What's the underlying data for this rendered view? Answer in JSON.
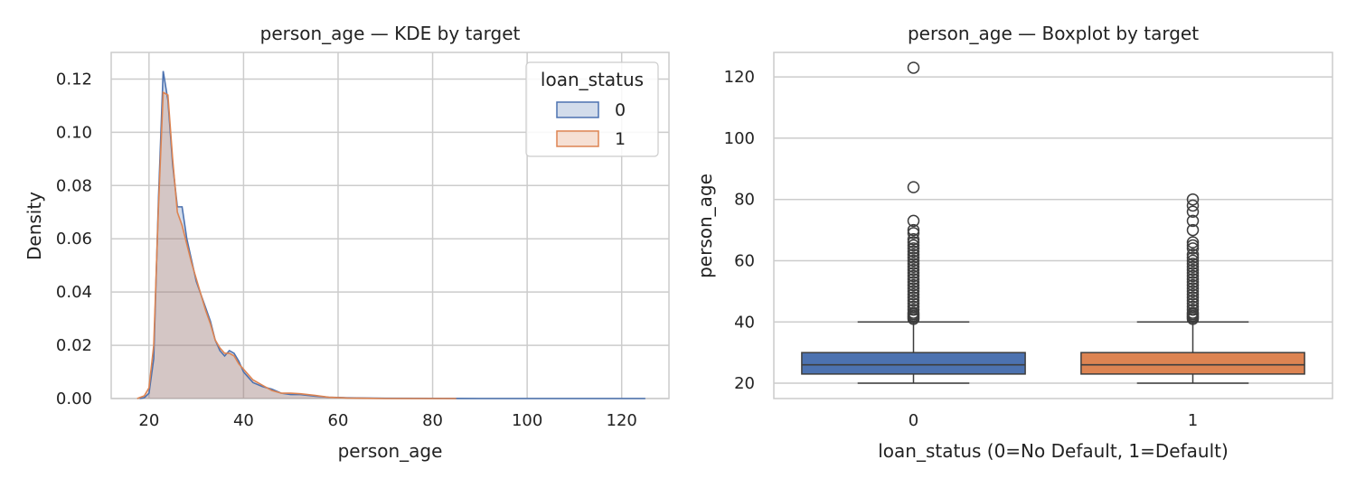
{
  "chart_data": [
    {
      "type": "area",
      "title": "person_age — KDE by target",
      "xlabel": "person_age",
      "ylabel": "Density",
      "xlim": [
        12,
        130
      ],
      "ylim": [
        0,
        0.13
      ],
      "xticks": [
        "20",
        "40",
        "60",
        "80",
        "100",
        "120"
      ],
      "yticks": [
        "0.00",
        "0.02",
        "0.04",
        "0.06",
        "0.08",
        "0.10",
        "0.12"
      ],
      "grid": true,
      "legend": {
        "title": "loan_status",
        "position": "top-right",
        "entries": [
          "0",
          "1"
        ]
      },
      "series": [
        {
          "name": "0",
          "color": "#4c72b0",
          "points": [
            [
              18,
              0
            ],
            [
              19,
              0.0003
            ],
            [
              20,
              0.002
            ],
            [
              21,
              0.015
            ],
            [
              22,
              0.075
            ],
            [
              23,
              0.123
            ],
            [
              24,
              0.112
            ],
            [
              25,
              0.088
            ],
            [
              26,
              0.072
            ],
            [
              27,
              0.072
            ],
            [
              28,
              0.06
            ],
            [
              29,
              0.052
            ],
            [
              30,
              0.044
            ],
            [
              31,
              0.039
            ],
            [
              32,
              0.034
            ],
            [
              33,
              0.029
            ],
            [
              34,
              0.022
            ],
            [
              35,
              0.018
            ],
            [
              36,
              0.016
            ],
            [
              37,
              0.018
            ],
            [
              38,
              0.017
            ],
            [
              39,
              0.014
            ],
            [
              40,
              0.01
            ],
            [
              41,
              0.008
            ],
            [
              42,
              0.006
            ],
            [
              44,
              0.0045
            ],
            [
              46,
              0.0035
            ],
            [
              48,
              0.002
            ],
            [
              50,
              0.0015
            ],
            [
              52,
              0.0015
            ],
            [
              55,
              0.0009
            ],
            [
              58,
              0.0005
            ],
            [
              62,
              0.0003
            ],
            [
              66,
              0.0002
            ],
            [
              70,
              0.0001
            ],
            [
              80,
              5e-05
            ],
            [
              90,
              0
            ],
            [
              125,
              0
            ]
          ]
        },
        {
          "name": "1",
          "color": "#dd8452",
          "points": [
            [
              17.5,
              0
            ],
            [
              19,
              0.001
            ],
            [
              20,
              0.004
            ],
            [
              21,
              0.02
            ],
            [
              22,
              0.072
            ],
            [
              23,
              0.115
            ],
            [
              24,
              0.114
            ],
            [
              25,
              0.09
            ],
            [
              26,
              0.07
            ],
            [
              27,
              0.065
            ],
            [
              28,
              0.058
            ],
            [
              29,
              0.051
            ],
            [
              30,
              0.045
            ],
            [
              31,
              0.039
            ],
            [
              32,
              0.033
            ],
            [
              33,
              0.028
            ],
            [
              34,
              0.022
            ],
            [
              35,
              0.019
            ],
            [
              36,
              0.017
            ],
            [
              37,
              0.017
            ],
            [
              38,
              0.016
            ],
            [
              39,
              0.013
            ],
            [
              40,
              0.011
            ],
            [
              41,
              0.009
            ],
            [
              42,
              0.007
            ],
            [
              44,
              0.005
            ],
            [
              46,
              0.003
            ],
            [
              48,
              0.002
            ],
            [
              50,
              0.002
            ],
            [
              52,
              0.0018
            ],
            [
              55,
              0.0012
            ],
            [
              58,
              0.0005
            ],
            [
              62,
              0.0002
            ],
            [
              66,
              0.0001
            ],
            [
              70,
              0
            ],
            [
              85,
              0
            ]
          ]
        }
      ]
    },
    {
      "type": "boxplot",
      "title": "person_age — Boxplot by target",
      "xlabel": "loan_status (0=No Default, 1=Default)",
      "ylabel": "person_age",
      "categories": [
        "0",
        "1"
      ],
      "ylim": [
        15,
        128
      ],
      "yticks": [
        "20",
        "40",
        "60",
        "80",
        "100",
        "120"
      ],
      "grid": true,
      "boxes": [
        {
          "category": "0",
          "color": "#4c72b0",
          "whisker_low": 20,
          "q1": 23,
          "median": 26,
          "q3": 30,
          "whisker_high": 40,
          "outliers": [
            41,
            41.5,
            42,
            42.5,
            43,
            44,
            45,
            46,
            47,
            48,
            49,
            50,
            51,
            52,
            53,
            54,
            55,
            56,
            57,
            58,
            59,
            60,
            61,
            62,
            63,
            64,
            65,
            66,
            67,
            69,
            70,
            73,
            84,
            123
          ]
        },
        {
          "category": "1",
          "color": "#dd8452",
          "whisker_low": 20,
          "q1": 23,
          "median": 26,
          "q3": 30,
          "whisker_high": 40,
          "outliers": [
            41,
            41.5,
            42,
            42.5,
            43,
            44,
            45,
            46,
            47,
            48,
            49,
            50,
            51,
            52,
            53,
            54,
            55,
            56,
            57,
            58,
            59,
            60,
            61,
            62,
            64,
            65,
            66,
            70,
            73,
            76,
            78,
            80
          ]
        }
      ]
    }
  ]
}
